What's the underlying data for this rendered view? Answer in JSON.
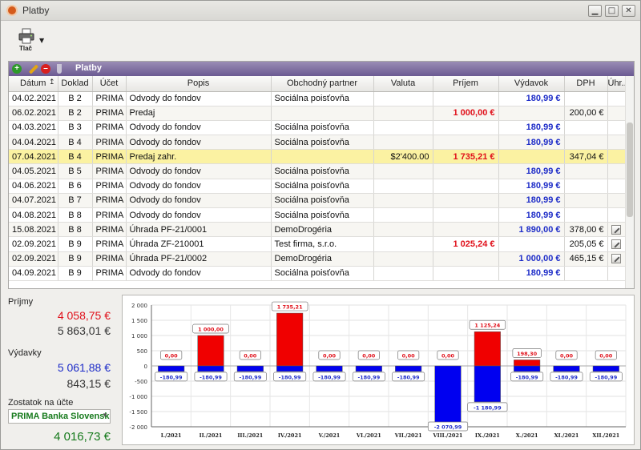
{
  "window": {
    "title": "Platby",
    "min_glyph": "▁",
    "max_glyph": "□",
    "close_glyph": "✕"
  },
  "toolbar": {
    "print_label": "Tlač",
    "print_icon": "printer-icon"
  },
  "panel": {
    "title": "Platby",
    "icons": [
      "add-icon",
      "edit-icon",
      "delete-icon",
      "filter-icon"
    ]
  },
  "columns": [
    "Dátum",
    "Doklad",
    "Účet",
    "Popis",
    "Obchodný partner",
    "Valuta",
    "Príjem",
    "Výdavok",
    "DPH",
    "Úhr..."
  ],
  "sort_glyph": "↥",
  "rows": [
    {
      "date": "04.02.2021",
      "doc": "B 2",
      "acc": "PRIMA",
      "desc": "Odvody do fondov",
      "partner": "Sociálna poisťovňa",
      "valuta": "",
      "inc": "",
      "exp": "180,99 €",
      "dph": "",
      "edit": false
    },
    {
      "date": "06.02.2021",
      "doc": "B 2",
      "acc": "PRIMA",
      "desc": "Predaj",
      "partner": "",
      "valuta": "",
      "inc": "1 000,00 €",
      "exp": "",
      "dph": "200,00 €",
      "edit": false
    },
    {
      "date": "04.03.2021",
      "doc": "B 3",
      "acc": "PRIMA",
      "desc": "Odvody do fondov",
      "partner": "Sociálna poisťovňa",
      "valuta": "",
      "inc": "",
      "exp": "180,99 €",
      "dph": "",
      "edit": false
    },
    {
      "date": "04.04.2021",
      "doc": "B 4",
      "acc": "PRIMA",
      "desc": "Odvody do fondov",
      "partner": "Sociálna poisťovňa",
      "valuta": "",
      "inc": "",
      "exp": "180,99 €",
      "dph": "",
      "edit": false
    },
    {
      "date": "07.04.2021",
      "doc": "B 4",
      "acc": "PRIMA",
      "desc": "Predaj zahr.",
      "partner": "",
      "valuta": "$2'400.00",
      "inc": "1 735,21 €",
      "exp": "",
      "dph": "347,04 €",
      "edit": false,
      "selected": true
    },
    {
      "date": "04.05.2021",
      "doc": "B 5",
      "acc": "PRIMA",
      "desc": "Odvody do fondov",
      "partner": "Sociálna poisťovňa",
      "valuta": "",
      "inc": "",
      "exp": "180,99 €",
      "dph": "",
      "edit": false
    },
    {
      "date": "04.06.2021",
      "doc": "B 6",
      "acc": "PRIMA",
      "desc": "Odvody do fondov",
      "partner": "Sociálna poisťovňa",
      "valuta": "",
      "inc": "",
      "exp": "180,99 €",
      "dph": "",
      "edit": false
    },
    {
      "date": "04.07.2021",
      "doc": "B 7",
      "acc": "PRIMA",
      "desc": "Odvody do fondov",
      "partner": "Sociálna poisťovňa",
      "valuta": "",
      "inc": "",
      "exp": "180,99 €",
      "dph": "",
      "edit": false
    },
    {
      "date": "04.08.2021",
      "doc": "B 8",
      "acc": "PRIMA",
      "desc": "Odvody do fondov",
      "partner": "Sociálna poisťovňa",
      "valuta": "",
      "inc": "",
      "exp": "180,99 €",
      "dph": "",
      "edit": false
    },
    {
      "date": "15.08.2021",
      "doc": "B 8",
      "acc": "PRIMA",
      "desc": "Úhrada PF-21/0001",
      "partner": "DemoDrogéria",
      "valuta": "",
      "inc": "",
      "exp": "1 890,00 €",
      "dph": "378,00 €",
      "edit": true
    },
    {
      "date": "02.09.2021",
      "doc": "B 9",
      "acc": "PRIMA",
      "desc": "Úhrada ZF-210001",
      "partner": "Test firma, s.r.o.",
      "valuta": "",
      "inc": "1 025,24 €",
      "exp": "",
      "dph": "205,05 €",
      "edit": true
    },
    {
      "date": "02.09.2021",
      "doc": "B 9",
      "acc": "PRIMA",
      "desc": "Úhrada PF-21/0002",
      "partner": "DemoDrogéria",
      "valuta": "",
      "inc": "",
      "exp": "1 000,00 €",
      "dph": "465,15 €",
      "edit": true
    },
    {
      "date": "04.09.2021",
      "doc": "B 9",
      "acc": "PRIMA",
      "desc": "Odvody do fondov",
      "partner": "Sociálna poisťovňa",
      "valuta": "",
      "inc": "",
      "exp": "180,99 €",
      "dph": "",
      "edit": false
    }
  ],
  "summary": {
    "income_label": "Príjmy",
    "income_total": "4 058,75 €",
    "income_other": "5 863,01 €",
    "expense_label": "Výdavky",
    "expense_total": "5 061,88 €",
    "expense_other": "843,15 €",
    "balance_label": "Zostatok na účte",
    "account": "PRIMA Banka Slovensko",
    "balance": "4 016,73 €"
  },
  "colors": {
    "income": "#e0101a",
    "expense": "#1d2cc8",
    "balance": "#167a1c",
    "selected_row": "#fbf2a2"
  },
  "chart_data": {
    "type": "bar",
    "categories": [
      "I./2021",
      "II./2021",
      "III./2021",
      "IV./2021",
      "V./2021",
      "VI./2021",
      "VII./2021",
      "VIII./2021",
      "IX./2021",
      "X./2021",
      "XI./2021",
      "XII./2021"
    ],
    "series": [
      {
        "name": "",
        "color": "#f00000",
        "values": [
          0,
          1000,
          0,
          1735.21,
          0,
          0,
          0,
          0,
          1125.24,
          198.3,
          0,
          0
        ],
        "labels": [
          "0,00",
          "1 000,00",
          "0,00",
          "1 735,21",
          "0,00",
          "0,00",
          "0,00",
          "0,00",
          "1 125,24",
          "198,30",
          "0,00",
          "0,00"
        ]
      },
      {
        "name": "",
        "color": "#0000f0",
        "values": [
          -180.99,
          -180.99,
          -180.99,
          -180.99,
          -180.99,
          -180.99,
          -180.99,
          -2070.99,
          -1180.99,
          -180.99,
          -180.99,
          -180.99
        ],
        "labels": [
          "-180,99",
          "-180,99",
          "-180,99",
          "-180,99",
          "-180,99",
          "-180,99",
          "-180,99",
          "-2 070,99",
          "-1 180,99",
          "-180,99",
          "-180,99",
          "-180,99"
        ]
      }
    ],
    "ylim": [
      -2000,
      2000
    ],
    "yticks": [
      2000,
      1500,
      1000,
      500,
      0,
      -500,
      -1000,
      -1500,
      -2000
    ],
    "ytick_labels": [
      "2 000",
      "1 500",
      "1 000",
      "500",
      "0",
      "-500",
      "-1 000",
      "-1 500",
      "-2 000"
    ],
    "grid": true
  }
}
